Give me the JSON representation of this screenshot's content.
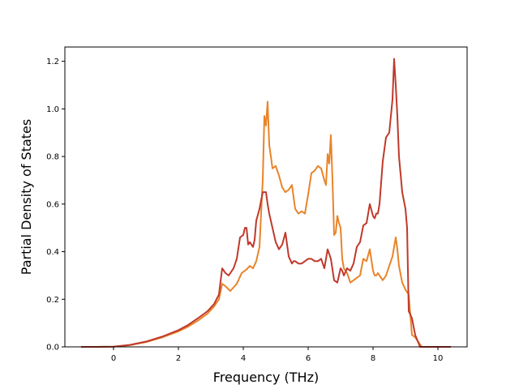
{
  "chart_data": {
    "type": "line",
    "title": "",
    "xlabel": "Frequency (THz)",
    "ylabel": "Partial Density of States",
    "xlim": [
      -1.5,
      10.9
    ],
    "ylim": [
      0.0,
      1.26
    ],
    "xticks": [
      0,
      2,
      4,
      6,
      8,
      10
    ],
    "xtick_labels": [
      "0",
      "2",
      "4",
      "6",
      "8",
      "10"
    ],
    "yticks": [
      0.0,
      0.2,
      0.4,
      0.6,
      0.8,
      1.0,
      1.2
    ],
    "ytick_labels": [
      "0.0",
      "0.2",
      "0.4",
      "0.6",
      "0.8",
      "1.0",
      "1.2"
    ],
    "grid": false,
    "legend": "none",
    "series": [
      {
        "color": "#e8842a",
        "x": [
          -1.0,
          -0.5,
          0.0,
          0.5,
          1.0,
          1.5,
          2.0,
          2.3,
          2.6,
          2.9,
          3.1,
          3.25,
          3.35,
          3.45,
          3.6,
          3.8,
          3.95,
          4.1,
          4.2,
          4.3,
          4.4,
          4.5,
          4.6,
          4.65,
          4.7,
          4.75,
          4.8,
          4.9,
          5.0,
          5.1,
          5.2,
          5.3,
          5.4,
          5.5,
          5.6,
          5.7,
          5.8,
          5.9,
          6.0,
          6.1,
          6.2,
          6.3,
          6.4,
          6.5,
          6.55,
          6.6,
          6.65,
          6.7,
          6.75,
          6.8,
          6.85,
          6.9,
          6.95,
          7.0,
          7.05,
          7.1,
          7.2,
          7.3,
          7.4,
          7.5,
          7.6,
          7.7,
          7.8,
          7.9,
          8.0,
          8.05,
          8.1,
          8.15,
          8.2,
          8.3,
          8.4,
          8.5,
          8.6,
          8.7,
          8.75,
          8.8,
          8.9,
          9.0,
          9.1,
          9.2,
          9.3,
          9.4,
          9.5,
          10.0,
          10.4
        ],
        "y": [
          0.0,
          0.0,
          0.001,
          0.007,
          0.02,
          0.04,
          0.065,
          0.085,
          0.11,
          0.14,
          0.17,
          0.2,
          0.265,
          0.255,
          0.235,
          0.265,
          0.31,
          0.325,
          0.34,
          0.33,
          0.36,
          0.42,
          0.7,
          0.97,
          0.93,
          1.03,
          0.85,
          0.75,
          0.76,
          0.72,
          0.67,
          0.65,
          0.66,
          0.68,
          0.58,
          0.56,
          0.57,
          0.56,
          0.64,
          0.73,
          0.74,
          0.76,
          0.75,
          0.7,
          0.68,
          0.81,
          0.77,
          0.89,
          0.7,
          0.47,
          0.48,
          0.55,
          0.52,
          0.5,
          0.37,
          0.33,
          0.31,
          0.27,
          0.28,
          0.29,
          0.3,
          0.37,
          0.36,
          0.41,
          0.32,
          0.3,
          0.3,
          0.31,
          0.3,
          0.28,
          0.3,
          0.34,
          0.38,
          0.46,
          0.41,
          0.34,
          0.27,
          0.24,
          0.22,
          0.05,
          0.04,
          0.02,
          0.0,
          0.0,
          0.0
        ]
      },
      {
        "color": "#c0392b",
        "x": [
          -1.0,
          -0.5,
          0.0,
          0.5,
          1.0,
          1.5,
          2.0,
          2.3,
          2.6,
          2.9,
          3.1,
          3.25,
          3.35,
          3.45,
          3.55,
          3.7,
          3.8,
          3.9,
          4.0,
          4.05,
          4.1,
          4.15,
          4.2,
          4.25,
          4.3,
          4.35,
          4.4,
          4.5,
          4.6,
          4.7,
          4.75,
          4.8,
          4.9,
          5.0,
          5.1,
          5.2,
          5.3,
          5.4,
          5.5,
          5.55,
          5.6,
          5.7,
          5.8,
          5.9,
          6.0,
          6.1,
          6.2,
          6.3,
          6.4,
          6.5,
          6.6,
          6.7,
          6.8,
          6.9,
          6.95,
          7.0,
          7.05,
          7.1,
          7.2,
          7.3,
          7.4,
          7.5,
          7.6,
          7.7,
          7.8,
          7.9,
          8.0,
          8.05,
          8.1,
          8.15,
          8.2,
          8.3,
          8.4,
          8.5,
          8.6,
          8.65,
          8.7,
          8.75,
          8.8,
          8.9,
          9.0,
          9.05,
          9.1,
          9.2,
          9.3,
          9.45,
          9.6,
          10.0,
          10.4
        ],
        "y": [
          0.0,
          0.0,
          0.001,
          0.008,
          0.022,
          0.043,
          0.07,
          0.092,
          0.12,
          0.15,
          0.18,
          0.22,
          0.33,
          0.31,
          0.3,
          0.33,
          0.37,
          0.46,
          0.47,
          0.5,
          0.5,
          0.43,
          0.44,
          0.43,
          0.42,
          0.45,
          0.53,
          0.58,
          0.65,
          0.65,
          0.6,
          0.56,
          0.5,
          0.44,
          0.41,
          0.43,
          0.48,
          0.38,
          0.35,
          0.36,
          0.36,
          0.35,
          0.35,
          0.36,
          0.37,
          0.37,
          0.36,
          0.36,
          0.37,
          0.33,
          0.41,
          0.37,
          0.28,
          0.27,
          0.3,
          0.33,
          0.32,
          0.3,
          0.33,
          0.32,
          0.35,
          0.42,
          0.44,
          0.51,
          0.52,
          0.6,
          0.55,
          0.54,
          0.56,
          0.56,
          0.6,
          0.78,
          0.88,
          0.9,
          1.04,
          1.21,
          1.1,
          0.97,
          0.8,
          0.65,
          0.58,
          0.5,
          0.15,
          0.12,
          0.05,
          0.0,
          0.0,
          0.0,
          0.0
        ]
      }
    ]
  }
}
